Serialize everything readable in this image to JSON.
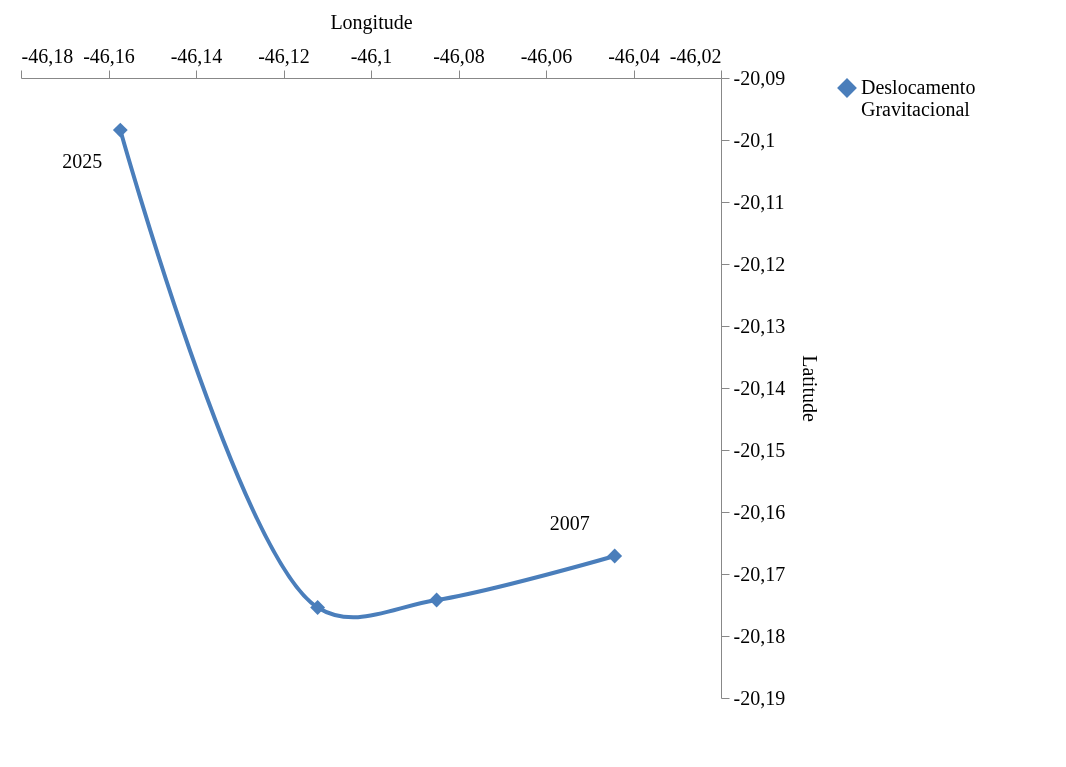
{
  "chart_data": {
    "type": "line",
    "xlabel": "Longitude",
    "ylabel": "Latitude",
    "x": [
      -46.1573,
      -46.1122,
      -46.085,
      -46.0443
    ],
    "series": [
      {
        "name": "Deslocamento Gravitacional",
        "color": "#4a7ebb",
        "values": [
          -20.0984,
          -20.1754,
          -20.1742,
          -20.1671
        ]
      }
    ],
    "xlim": [
      -46.18,
      -46.02
    ],
    "xticks": [
      {
        "value": -46.18,
        "label": "-46,18"
      },
      {
        "value": -46.16,
        "label": "-46,16"
      },
      {
        "value": -46.14,
        "label": "-46,14"
      },
      {
        "value": -46.12,
        "label": "-46,12"
      },
      {
        "value": -46.1,
        "label": "-46,1"
      },
      {
        "value": -46.08,
        "label": "-46,08"
      },
      {
        "value": -46.06,
        "label": "-46,06"
      },
      {
        "value": -46.04,
        "label": "-46,04"
      },
      {
        "value": -46.02,
        "label": "-46,02"
      }
    ],
    "ylim": [
      -20.19,
      -20.09
    ],
    "yticks": [
      {
        "value": -20.09,
        "label": "-20,09"
      },
      {
        "value": -20.1,
        "label": "-20,1"
      },
      {
        "value": -20.11,
        "label": "-20,11"
      },
      {
        "value": -20.12,
        "label": "-20,12"
      },
      {
        "value": -20.13,
        "label": "-20,13"
      },
      {
        "value": -20.14,
        "label": "-20,14"
      },
      {
        "value": -20.15,
        "label": "-20,15"
      },
      {
        "value": -20.16,
        "label": "-20,16"
      },
      {
        "value": -20.17,
        "label": "-20,17"
      },
      {
        "value": -20.18,
        "label": "-20,18"
      },
      {
        "value": -20.19,
        "label": "-20,19"
      }
    ],
    "annotations": [
      {
        "text": "2025",
        "x": -46.1573,
        "y": -20.0984
      },
      {
        "text": "2007",
        "x": -46.0443,
        "y": -20.1671
      }
    ],
    "marker": "diamond",
    "line_style": "solid",
    "legend": "right",
    "grid": false
  }
}
